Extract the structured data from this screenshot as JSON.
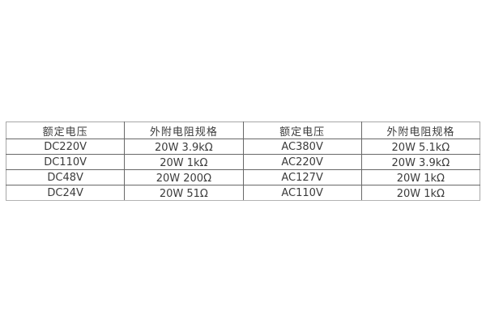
{
  "table": {
    "headers": [
      "额定电压",
      "外附电阻规格",
      "额定电压",
      "外附电阻规格"
    ],
    "rows": [
      [
        "DC220V",
        "20W 3.9kΩ",
        "AC380V",
        "20W 5.1kΩ"
      ],
      [
        "DC110V",
        "20W 1kΩ",
        "AC220V",
        "20W 3.9kΩ"
      ],
      [
        "DC48V",
        "20W 200Ω",
        "AC127V",
        "20W 1kΩ"
      ],
      [
        "DC24V",
        "20W 51Ω",
        "AC110V",
        "20W 1kΩ"
      ]
    ],
    "colors": {
      "outer_border": "#a6a6a6",
      "inner_border": "#686868",
      "text": "#3b3b3b",
      "background": "#ffffff"
    }
  }
}
